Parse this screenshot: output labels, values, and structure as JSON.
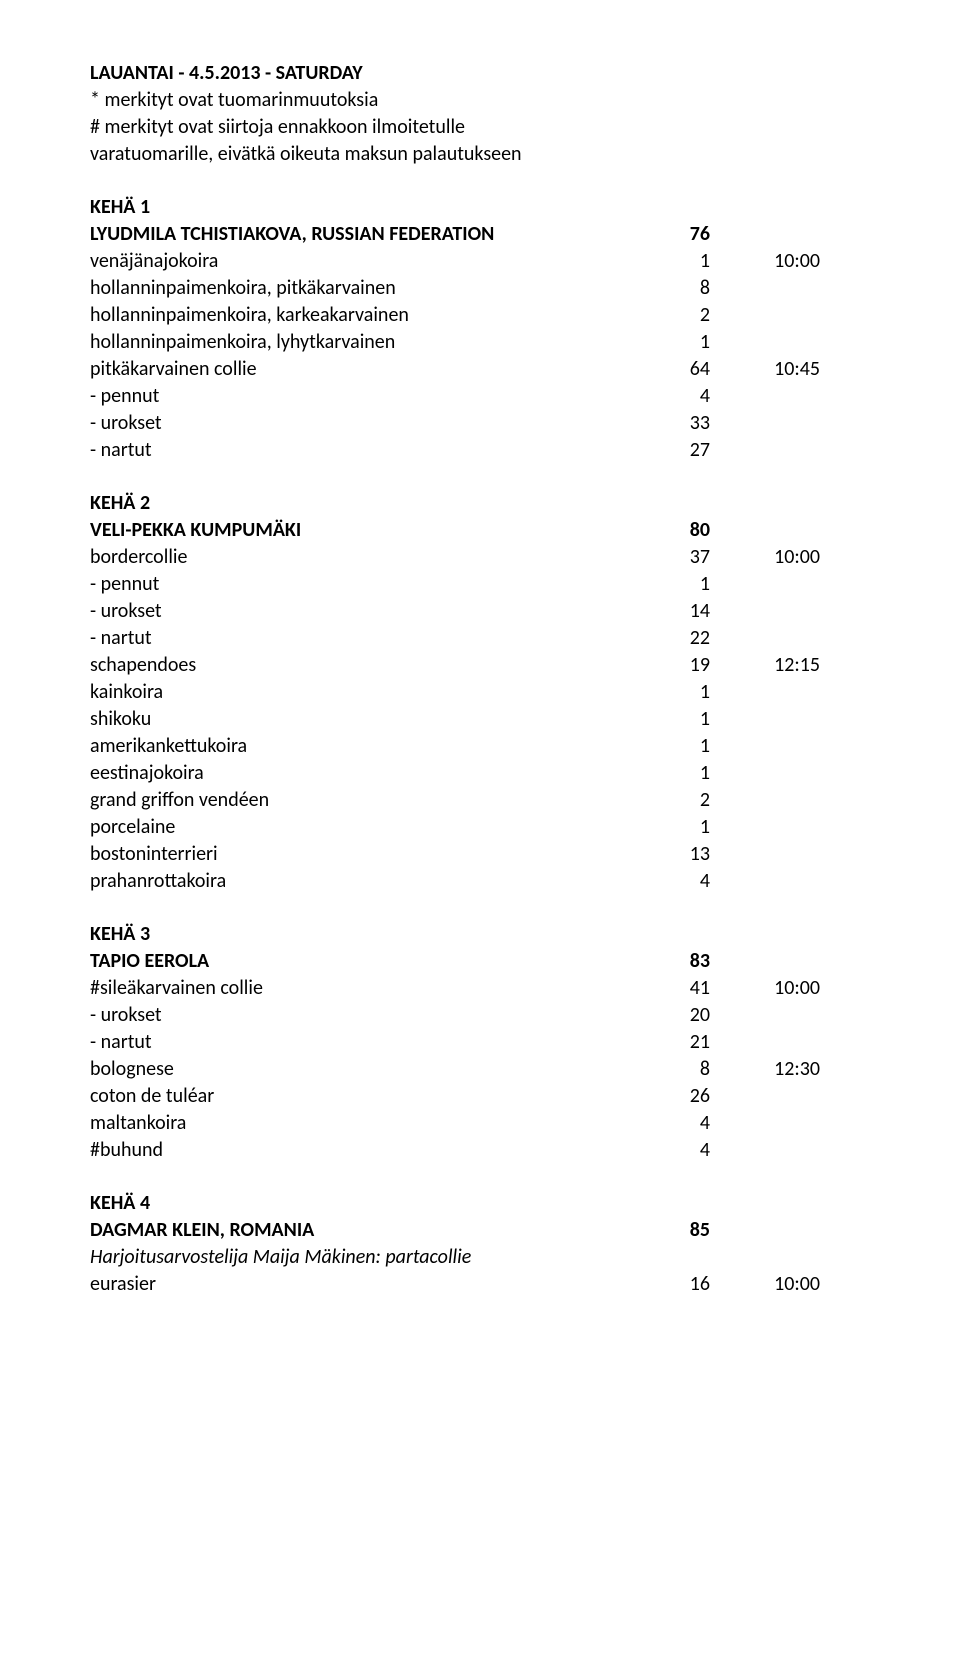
{
  "header": {
    "line1": "LAUANTAI - 4.5.2013 - SATURDAY",
    "line2": "* merkityt ovat tuomarinmuutoksia",
    "line3": "# merkityt ovat siirtoja ennakkoon ilmoitetulle",
    "line4": "varatuomarille, eivätkä oikeuta maksun palautukseen"
  },
  "ring1": {
    "title": "KEHÄ 1",
    "judge": "LYUDMILA TCHISTIAKOVA, RUSSIAN FEDERATION",
    "judge_total": "76",
    "rows": [
      {
        "label": "venäjänajokoira",
        "num": "1",
        "time": "10:00"
      },
      {
        "label": "hollanninpaimenkoira, pitkäkarvainen",
        "num": "8",
        "time": ""
      },
      {
        "label": "hollanninpaimenkoira, karkeakarvainen",
        "num": "2",
        "time": ""
      },
      {
        "label": "hollanninpaimenkoira, lyhytkarvainen",
        "num": "1",
        "time": ""
      },
      {
        "label": "pitkäkarvainen collie",
        "num": "64",
        "time": "10:45"
      },
      {
        "label": "- pennut",
        "num": "4",
        "time": ""
      },
      {
        "label": "- urokset",
        "num": "33",
        "time": ""
      },
      {
        "label": "- nartut",
        "num": "27",
        "time": ""
      }
    ]
  },
  "ring2": {
    "title": "KEHÄ 2",
    "judge": "VELI-PEKKA KUMPUMÄKI",
    "judge_total": "80",
    "rows": [
      {
        "label": "bordercollie",
        "num": "37",
        "time": "10:00"
      },
      {
        "label": "- pennut",
        "num": "1",
        "time": ""
      },
      {
        "label": "- urokset",
        "num": "14",
        "time": ""
      },
      {
        "label": "- nartut",
        "num": "22",
        "time": ""
      },
      {
        "label": "schapendoes",
        "num": "19",
        "time": "12:15"
      },
      {
        "label": "kainkoira",
        "num": "1",
        "time": ""
      },
      {
        "label": "shikoku",
        "num": "1",
        "time": ""
      },
      {
        "label": "amerikankettukoira",
        "num": "1",
        "time": ""
      },
      {
        "label": "eestinajokoira",
        "num": "1",
        "time": ""
      },
      {
        "label": "grand griffon vendéen",
        "num": "2",
        "time": ""
      },
      {
        "label": "porcelaine",
        "num": "1",
        "time": ""
      },
      {
        "label": "bostoninterrieri",
        "num": "13",
        "time": ""
      },
      {
        "label": "prahanrottakoira",
        "num": "4",
        "time": ""
      }
    ]
  },
  "ring3": {
    "title": "KEHÄ 3",
    "judge": "TAPIO EEROLA",
    "judge_total": "83",
    "rows": [
      {
        "label": "#sileäkarvainen collie",
        "num": "41",
        "time": "10:00"
      },
      {
        "label": "- urokset",
        "num": "20",
        "time": ""
      },
      {
        "label": "- nartut",
        "num": "21",
        "time": ""
      },
      {
        "label": "bolognese",
        "num": "8",
        "time": "12:30"
      },
      {
        "label": "coton de tuléar",
        "num": "26",
        "time": ""
      },
      {
        "label": "maltankoira",
        "num": "4",
        "time": ""
      },
      {
        "label": "#buhund",
        "num": "4",
        "time": ""
      }
    ]
  },
  "ring4": {
    "title": "KEHÄ 4",
    "judge": "DAGMAR KLEIN, ROMANIA",
    "judge_total": "85",
    "note": "Harjoitusarvostelija Maija Mäkinen: partacollie",
    "rows": [
      {
        "label": "eurasier",
        "num": "16",
        "time": "10:00"
      }
    ]
  }
}
